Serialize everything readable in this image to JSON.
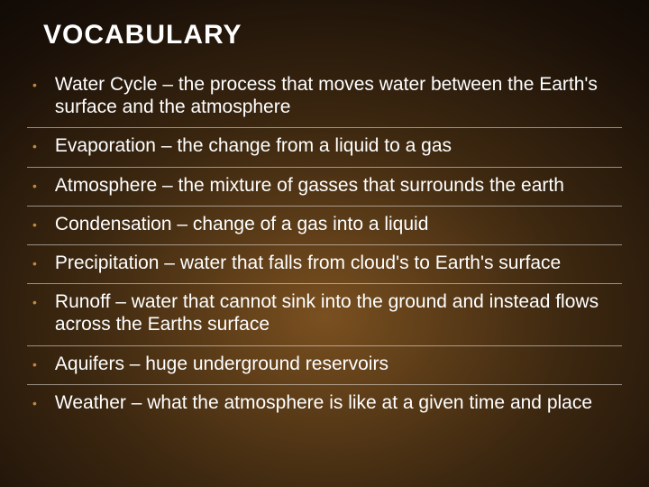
{
  "title": "VOCABULARY",
  "background": {
    "type": "radial-gradient",
    "center_color": "#7a5020",
    "mid_color": "#3d2810",
    "outer_color": "#000000"
  },
  "typography": {
    "title_fontsize": 30,
    "title_weight": "bold",
    "title_color": "#ffffff",
    "body_fontsize": 21,
    "body_color": "#ffffff",
    "font_family": "Arial"
  },
  "bullet": {
    "color": "#c08840",
    "char": "•"
  },
  "divider_color": "rgba(255,255,255,0.5)",
  "items": [
    {
      "text": "Water Cycle – the process that moves water between the Earth's surface and the atmosphere"
    },
    {
      "text": "Evaporation – the change from a liquid to a gas"
    },
    {
      "text": "Atmosphere – the mixture of gasses that surrounds the earth"
    },
    {
      "text": "Condensation – change of a gas into a liquid"
    },
    {
      "text": "Precipitation – water that falls from cloud's to Earth's surface"
    },
    {
      "text": "Runoff – water that cannot sink into the ground and instead flows across the Earths surface"
    },
    {
      "text": "Aquifers – huge underground reservoirs"
    },
    {
      "text": "Weather – what the atmosphere is like at a given time and place"
    }
  ]
}
